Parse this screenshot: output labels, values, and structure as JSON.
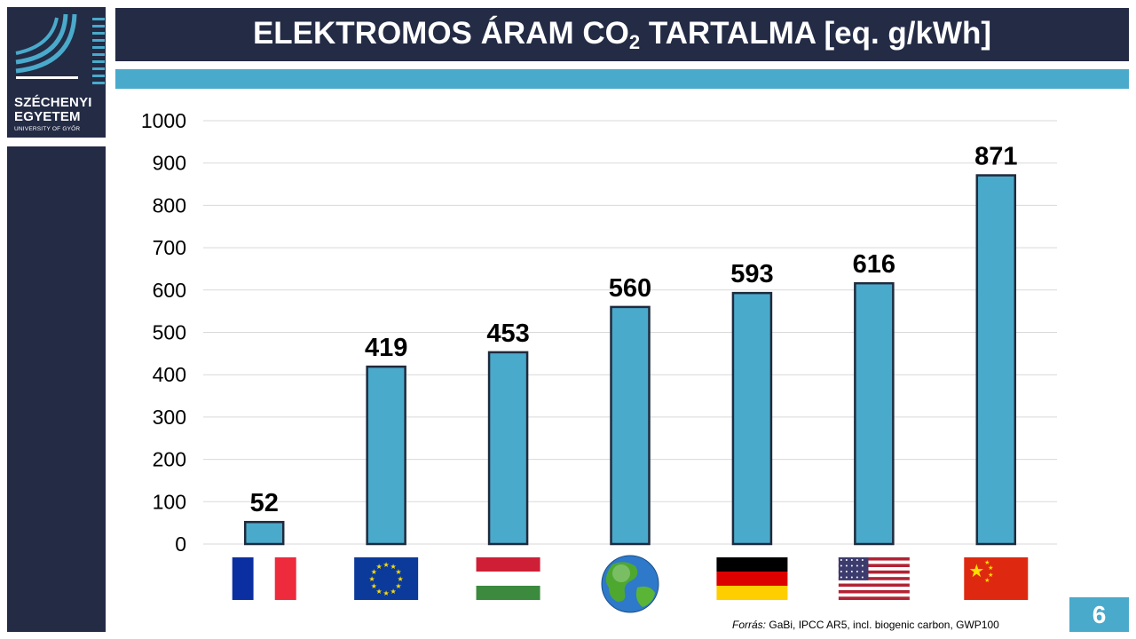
{
  "slide": {
    "title_main": "ELEKTROMOS ÁRAM CO",
    "title_sub": "2",
    "title_rest": " TARTALMA [eq. g/kWh]",
    "page_number": "6"
  },
  "logo": {
    "line1": "SZÉCHENYI",
    "line2": "EGYETEM",
    "line3": "UNIVERSITY OF GYŐR"
  },
  "source": {
    "label": "Forrás:",
    "text": "GaBi, IPCC AR5, incl. biogenic carbon, GWP100"
  },
  "colors": {
    "navy": "#232b45",
    "accent": "#4aaacb",
    "bar_fill": "#4aaacb",
    "bar_stroke": "#1f2a3d"
  },
  "chart_data": {
    "type": "bar",
    "categories": [
      "France",
      "EU",
      "Hungary",
      "World",
      "Germany",
      "USA",
      "China"
    ],
    "category_icons": [
      "flag-france",
      "flag-eu",
      "flag-hungary",
      "globe",
      "flag-germany",
      "flag-usa",
      "flag-china"
    ],
    "values": [
      52,
      419,
      453,
      560,
      593,
      616,
      871
    ],
    "data_labels": [
      "52",
      "419",
      "453",
      "560",
      "593",
      "616",
      "871"
    ],
    "ylim": [
      0,
      1000
    ],
    "yticks": [
      0,
      100,
      200,
      300,
      400,
      500,
      600,
      700,
      800,
      900,
      1000
    ],
    "grid": true,
    "legend": "none"
  }
}
